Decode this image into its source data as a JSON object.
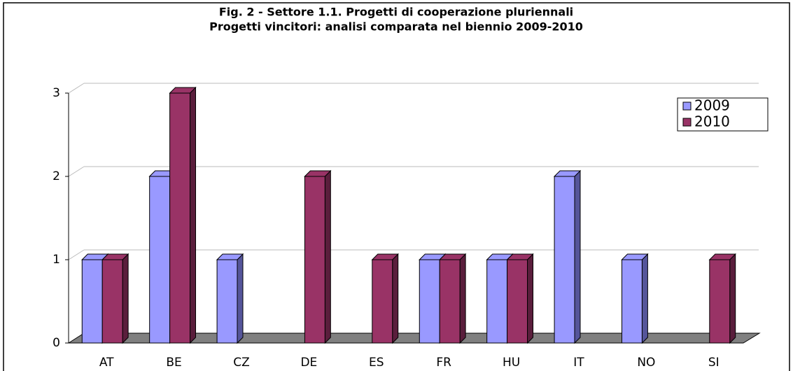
{
  "chart_data": {
    "type": "bar3d",
    "title": "Fig. 2 - Settore 1.1.  Progetti di cooperazione pluriennali",
    "subtitle": "Progetti vincitori: analisi comparata nel biennio 2009-2010",
    "categories": [
      "AT",
      "BE",
      "CZ",
      "DE",
      "ES",
      "FR",
      "HU",
      "IT",
      "NO",
      "SI"
    ],
    "series": [
      {
        "name": "2009",
        "color": "#9999ff",
        "side": "#55559a",
        "values": [
          1,
          2,
          1,
          0,
          0,
          1,
          1,
          2,
          1,
          0
        ]
      },
      {
        "name": "2010",
        "color": "#993366",
        "side": "#5a1e3c",
        "values": [
          1,
          3,
          0,
          2,
          1,
          1,
          1,
          0,
          0,
          1
        ]
      }
    ],
    "ylim": [
      0,
      3
    ],
    "yticks": [
      0,
      1,
      2,
      3
    ],
    "grid": true,
    "legend": "top-right"
  }
}
